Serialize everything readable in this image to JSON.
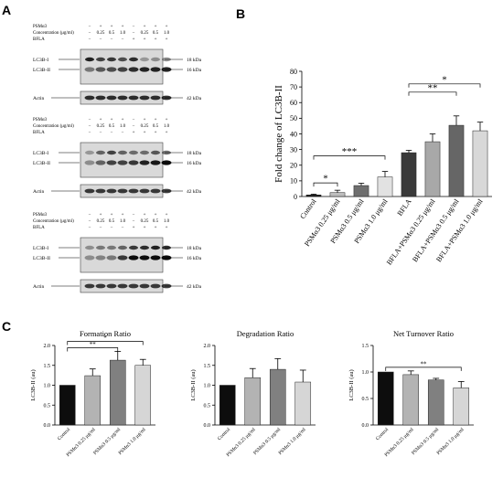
{
  "panels": {
    "A": "A",
    "B": "B",
    "C": "C"
  },
  "blot_rows": {
    "psm": "PSMα3",
    "conc": "Concentration (μg/ml)",
    "bfla": "BFLA"
  },
  "blot_signs": {
    "psm": [
      "−",
      "+",
      "+",
      "+",
      "−",
      "+",
      "+",
      "+"
    ],
    "conc": [
      "−",
      "0.25",
      "0.5",
      "1.0",
      "−",
      "0.25",
      "0.5",
      "1.0"
    ],
    "bfla": [
      "−",
      "−",
      "−",
      "−",
      "+",
      "+",
      "+",
      "+"
    ]
  },
  "blot_labels": {
    "lc3bi": "LC3B-I",
    "lc3bii": "LC3B-II",
    "actin": "Actin",
    "kda18": "18 kDa",
    "kda16": "16 kDa",
    "kda42": "42 kDa"
  },
  "blots": [
    {
      "lc3bi": [
        0.85,
        0.7,
        0.75,
        0.65,
        0.8,
        0.3,
        0.35,
        0.4
      ],
      "lc3bii": [
        0.45,
        0.6,
        0.65,
        0.7,
        0.8,
        0.85,
        0.85,
        0.85
      ],
      "actin": [
        0.8,
        0.8,
        0.8,
        0.8,
        0.8,
        0.8,
        0.8,
        0.8
      ]
    },
    {
      "lc3bi": [
        0.3,
        0.55,
        0.7,
        0.55,
        0.5,
        0.5,
        0.6,
        0.55
      ],
      "lc3bii": [
        0.35,
        0.55,
        0.7,
        0.7,
        0.75,
        0.85,
        0.9,
        0.95
      ],
      "actin": [
        0.75,
        0.75,
        0.75,
        0.75,
        0.75,
        0.75,
        0.75,
        0.75
      ]
    },
    {
      "lc3bi": [
        0.35,
        0.45,
        0.45,
        0.55,
        0.75,
        0.8,
        0.85,
        0.8
      ],
      "lc3bii": [
        0.35,
        0.4,
        0.45,
        0.75,
        0.95,
        0.95,
        0.95,
        0.95
      ],
      "actin": [
        0.75,
        0.75,
        0.75,
        0.75,
        0.75,
        0.75,
        0.75,
        0.75
      ]
    }
  ],
  "chart_data": [
    {
      "type": "bar",
      "id": "B",
      "ylabel": "Fold change of LC3B-II",
      "ylim": [
        0,
        80
      ],
      "yticks": [
        0,
        10,
        20,
        30,
        40,
        50,
        60,
        70,
        80
      ],
      "categories": [
        "Control",
        "PSMα3 0.25 μg/ml",
        "PSMα3 0.5 μg/ml",
        "PSMα3 1.0 μg/ml",
        "BFLA",
        "BFLA+PSMα3 0.25 μg/ml",
        "BFLA+PSMα3 0.5 μg/ml",
        "BFLA+PSMα3 1.0 μg/ml"
      ],
      "values": [
        1,
        2.5,
        7,
        12.5,
        28,
        35,
        45.5,
        42
      ],
      "errors": [
        0.5,
        1.5,
        1.5,
        3.5,
        1.5,
        5,
        6,
        5.5
      ],
      "colors": [
        "#1a1a1a",
        "#bdbdbd",
        "#6e6e6e",
        "#e2e2e2",
        "#3a3a3a",
        "#a8a8a8",
        "#666666",
        "#d8d8d8"
      ],
      "significance": [
        {
          "from": 0,
          "to": 1,
          "label": "*"
        },
        {
          "from": 0,
          "to": 3,
          "label": "***"
        },
        {
          "from": 4,
          "to": 6,
          "label": "**"
        },
        {
          "from": 4,
          "to": 7,
          "label": "*"
        }
      ]
    },
    {
      "type": "bar",
      "id": "C1",
      "title": "Formation Ratio",
      "ylabel": "LC3B-II (au)",
      "ylim": [
        0,
        2.0
      ],
      "yticks": [
        0.0,
        0.5,
        1.0,
        1.5,
        2.0
      ],
      "ytick_labels": [
        "0.0",
        "0.5",
        "1.0",
        "1.5",
        "2.0"
      ],
      "categories": [
        "Control",
        "PSMα3 0.25 μg/ml",
        "PSMα3 0.5 μg/ml",
        "PSMα3 1.0 μg/ml"
      ],
      "values": [
        1.0,
        1.24,
        1.63,
        1.5
      ],
      "errors": [
        0,
        0.17,
        0.22,
        0.15
      ],
      "colors": [
        "#0d0d0d",
        "#b3b3b3",
        "#808080",
        "#d6d6d6"
      ],
      "significance": [
        {
          "from": 0,
          "to": 2,
          "label": "**"
        },
        {
          "from": 0,
          "to": 3,
          "label": "*"
        }
      ]
    },
    {
      "type": "bar",
      "id": "C2",
      "title": "Degradation Ratio",
      "ylabel": "LC3B-II (au)",
      "ylim": [
        0,
        2.0
      ],
      "yticks": [
        0.0,
        0.5,
        1.0,
        1.5,
        2.0
      ],
      "ytick_labels": [
        "0.0",
        "0.5",
        "1.0",
        "1.5",
        "2.0"
      ],
      "categories": [
        "Control",
        "PSMα3 0.25 μg/ml",
        "PSMα3 0.5 μg/ml",
        "PSMα3 1.0 μg/ml"
      ],
      "values": [
        1.0,
        1.19,
        1.4,
        1.08
      ],
      "errors": [
        0,
        0.23,
        0.27,
        0.3
      ],
      "colors": [
        "#0d0d0d",
        "#b3b3b3",
        "#808080",
        "#d6d6d6"
      ],
      "significance": []
    },
    {
      "type": "bar",
      "id": "C3",
      "title": "Net Turnover Ratio",
      "ylabel": "LC3B-II (au)",
      "ylim": [
        0,
        1.5
      ],
      "yticks": [
        0.0,
        0.5,
        1.0,
        1.5
      ],
      "ytick_labels": [
        "0.0",
        "0.5",
        "1.0",
        "1.5"
      ],
      "categories": [
        "Control",
        "PSMα3 0.25 μg/ml",
        "PSMα3 0.5 μg/ml",
        "PSMα3 1.0 μg/ml"
      ],
      "values": [
        1.0,
        0.95,
        0.85,
        0.7
      ],
      "errors": [
        0,
        0.07,
        0.03,
        0.12
      ],
      "colors": [
        "#0d0d0d",
        "#b3b3b3",
        "#808080",
        "#d6d6d6"
      ],
      "significance": [
        {
          "from": 0,
          "to": 3,
          "label": "**"
        }
      ]
    }
  ]
}
